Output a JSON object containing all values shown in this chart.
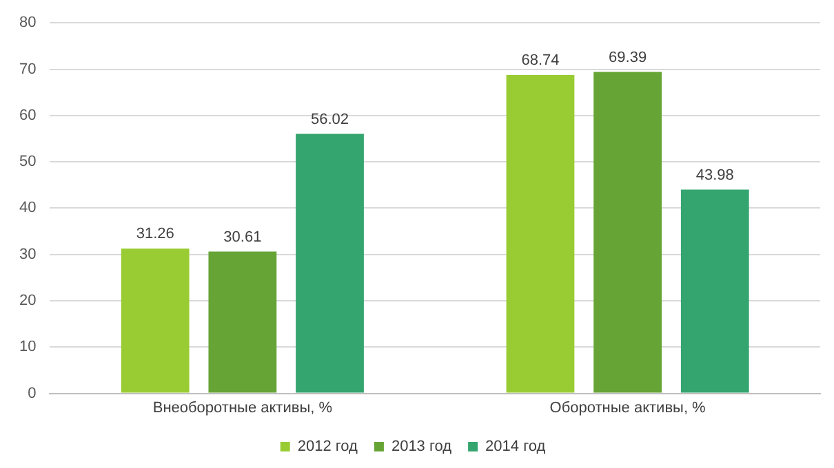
{
  "chart_data": {
    "type": "bar",
    "categories": [
      "Внеоборотные активы, %",
      "Оборотные активы, %"
    ],
    "series": [
      {
        "name": "2012 год",
        "color": "#99cc33",
        "values": [
          31.26,
          68.74
        ]
      },
      {
        "name": "2013 год",
        "color": "#66a436",
        "values": [
          30.61,
          69.39
        ]
      },
      {
        "name": "2014 год",
        "color": "#34a56f",
        "values": [
          56.02,
          43.98
        ]
      }
    ],
    "ylim": [
      0,
      80
    ],
    "yticks": [
      0,
      10,
      20,
      30,
      40,
      50,
      60,
      70,
      80
    ],
    "grid": "y",
    "legend": "bottom",
    "data_labels": true
  }
}
